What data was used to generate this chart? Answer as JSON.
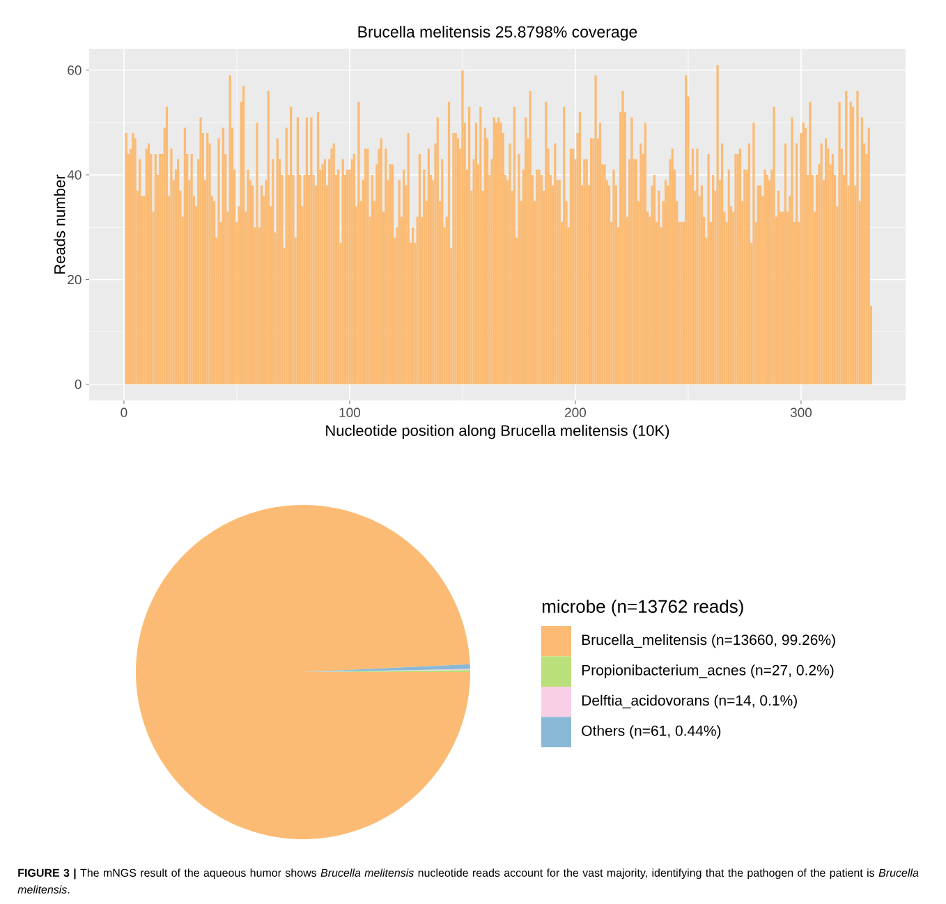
{
  "chart_data": [
    {
      "type": "bar",
      "title": "Brucella melitensis 25.8798% coverage",
      "xlabel": "Nucleotide position along Brucella melitensis (10K)",
      "ylabel": "Reads number",
      "color": "#fbbb74",
      "x": [
        1,
        2,
        3,
        4,
        5,
        6,
        7,
        8,
        9,
        10,
        11,
        12,
        13,
        14,
        15,
        16,
        17,
        18,
        19,
        20,
        21,
        22,
        23,
        24,
        25,
        26,
        27,
        28,
        29,
        30,
        31,
        32,
        33,
        34,
        35,
        36,
        37,
        38,
        39,
        40,
        41,
        42,
        43,
        44,
        45,
        46,
        47,
        48,
        49,
        50,
        51,
        52,
        53,
        54,
        55,
        56,
        57,
        58,
        59,
        60,
        61,
        62,
        63,
        64,
        65,
        66,
        67,
        68,
        69,
        70,
        71,
        72,
        73,
        74,
        75,
        76,
        77,
        78,
        79,
        80,
        81,
        82,
        83,
        84,
        85,
        86,
        87,
        88,
        89,
        90,
        91,
        92,
        93,
        94,
        95,
        96,
        97,
        98,
        99,
        100,
        101,
        102,
        103,
        104,
        105,
        106,
        107,
        108,
        109,
        110,
        111,
        112,
        113,
        114,
        115,
        116,
        117,
        118,
        119,
        120,
        121,
        122,
        123,
        124,
        125,
        126,
        127,
        128,
        129,
        130,
        131,
        132,
        133,
        134,
        135,
        136,
        137,
        138,
        139,
        140,
        141,
        142,
        143,
        144,
        145,
        146,
        147,
        148,
        149,
        150,
        151,
        152,
        153,
        154,
        155,
        156,
        157,
        158,
        159,
        160,
        161,
        162,
        163,
        164,
        165,
        166,
        167,
        168,
        169,
        170,
        171,
        172,
        173,
        174,
        175,
        176,
        177,
        178,
        179,
        180,
        181,
        182,
        183,
        184,
        185,
        186,
        187,
        188,
        189,
        190,
        191,
        192,
        193,
        194,
        195,
        196,
        197,
        198,
        199,
        200,
        201,
        202,
        203,
        204,
        205,
        206,
        207,
        208,
        209,
        210,
        211,
        212,
        213,
        214,
        215,
        216,
        217,
        218,
        219,
        220,
        221,
        222,
        223,
        224,
        225,
        226,
        227,
        228,
        229,
        230,
        231,
        232,
        233,
        234,
        235,
        236,
        237,
        238,
        239,
        240,
        241,
        242,
        243,
        244,
        245,
        246,
        247,
        248,
        249,
        250,
        251,
        252,
        253,
        254,
        255,
        256,
        257,
        258,
        259,
        260,
        261,
        262,
        263,
        264,
        265,
        266,
        267,
        268,
        269,
        270,
        271,
        272,
        273,
        274,
        275,
        276,
        277,
        278,
        279,
        280,
        281,
        282,
        283,
        284,
        285,
        286,
        287,
        288,
        289,
        290,
        291,
        292,
        293,
        294,
        295,
        296,
        297,
        298,
        299,
        300,
        301,
        302,
        303,
        304,
        305,
        306,
        307,
        308,
        309,
        310,
        311,
        312,
        313,
        314,
        315,
        316,
        317,
        318,
        319,
        320,
        321,
        322,
        323,
        324,
        325,
        326,
        327,
        328,
        329,
        330,
        331
      ],
      "values": [
        48,
        44,
        45,
        48,
        47,
        37,
        43,
        36,
        36,
        45,
        46,
        44,
        33,
        44,
        40,
        44,
        44,
        49,
        53,
        36,
        45,
        39,
        41,
        43,
        37,
        32,
        49,
        44,
        39,
        44,
        36,
        34,
        43,
        51,
        48,
        39,
        48,
        46,
        36,
        35,
        28,
        47,
        31,
        49,
        44,
        33,
        59,
        49,
        41,
        31,
        34,
        54,
        57,
        33,
        41,
        39,
        38,
        30,
        50,
        30,
        38,
        36,
        39,
        56,
        34,
        43,
        29,
        47,
        43,
        40,
        26,
        49,
        40,
        53,
        40,
        28,
        51,
        40,
        34,
        40,
        51,
        40,
        51,
        40,
        38,
        52,
        41,
        42,
        43,
        38,
        43,
        45,
        46,
        40,
        41,
        27,
        43,
        40,
        41,
        41,
        43,
        44,
        34,
        54,
        35,
        39,
        45,
        45,
        32,
        40,
        35,
        42,
        45,
        47,
        33,
        45,
        39,
        42,
        42,
        28,
        30,
        39,
        32,
        41,
        38,
        48,
        27,
        30,
        27,
        32,
        44,
        32,
        41,
        35,
        45,
        40,
        39,
        46,
        51,
        35,
        43,
        30,
        32,
        54,
        26,
        48,
        48,
        47,
        45,
        60,
        50,
        41,
        53,
        37,
        43,
        50,
        42,
        53,
        37,
        49,
        47,
        40,
        43,
        51,
        50,
        51,
        50,
        48,
        40,
        39,
        46,
        37,
        53,
        28,
        44,
        35,
        41,
        51,
        47,
        56,
        40,
        35,
        41,
        41,
        40,
        37,
        54,
        45,
        40,
        38,
        46,
        39,
        39,
        31,
        53,
        35,
        30,
        45,
        45,
        43,
        48,
        52,
        38,
        43,
        43,
        38,
        47,
        47,
        59,
        47,
        50,
        42,
        42,
        39,
        38,
        31,
        41,
        38,
        30,
        52,
        56,
        52,
        32,
        43,
        51,
        43,
        43,
        35,
        46,
        44,
        50,
        33,
        32,
        38,
        40,
        31,
        37,
        30,
        35,
        39,
        38,
        43,
        45,
        41,
        35,
        31,
        31,
        31,
        59,
        55,
        40,
        45,
        37,
        45,
        36,
        38,
        32,
        28,
        44,
        31,
        40,
        37,
        61,
        39,
        46,
        33,
        31,
        41,
        34,
        33,
        44,
        44,
        45,
        35,
        41,
        41,
        46,
        27,
        50,
        31,
        38,
        38,
        36,
        41,
        40,
        39,
        41,
        53,
        32,
        37,
        33,
        33,
        46,
        33,
        36,
        51,
        31,
        46,
        31,
        48,
        50,
        49,
        40,
        54,
        40,
        33,
        40,
        42,
        46,
        39,
        47,
        45,
        42,
        44,
        40,
        34,
        54,
        45,
        40,
        56,
        38,
        54,
        53,
        38,
        56,
        35,
        51,
        46,
        44,
        49,
        15
      ],
      "xlim": [
        -15.4,
        346.3
      ],
      "ylim": [
        -3.1,
        64.1
      ],
      "xticks": [
        0,
        {
          "value": 50,
          "label": null
        },
        100,
        {
          "value": 150,
          "label": null
        },
        200,
        {
          "value": 250,
          "label": null
        },
        300
      ],
      "yticks": [
        0,
        {
          "value": 10,
          "label": null
        },
        20,
        {
          "value": 30,
          "label": null
        },
        40,
        {
          "value": 50,
          "label": null
        },
        60
      ],
      "grid": true
    },
    {
      "type": "pie",
      "legend_title": "microbe (n=13762 reads)",
      "legend": "right",
      "categories": [
        "Brucella_melitensis (n=13660, 99.26%)",
        "Propionibacterium_acnes (n=27, 0.2%)",
        "Delftia_acidovorans (n=14, 0.1%)",
        "Others (n=61, 0.44%)"
      ],
      "values": [
        13660,
        27,
        14,
        61
      ],
      "colors": [
        "#fbbb74",
        "#b9e07a",
        "#f9cfe6",
        "#89b9d6"
      ],
      "annotations": [
        "**FIGURE 3 |** The mNGS result of the aqueous humor shows *Brucella melitensis* nucleotide reads account for the vast majority, identifying that the pathogen of the patient is *Brucella melitensis*."
      ]
    }
  ]
}
